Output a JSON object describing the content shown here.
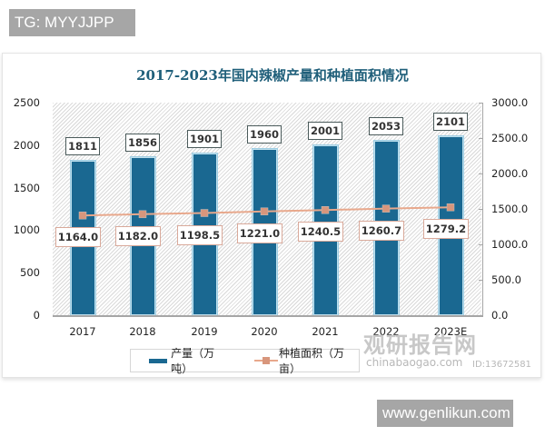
{
  "watermarks": {
    "top": "TG: MYYJJPP",
    "bottom": "www.genlikun.com",
    "brand": "观研报告网",
    "brand_sub": "chinabaogao.com",
    "brand_id": "ID:13672581"
  },
  "chart_data": {
    "type": "bar",
    "title": "2017-2023年国内辣椒产量和种植面积情况",
    "categories": [
      "2017",
      "2018",
      "2019",
      "2020",
      "2021",
      "2022",
      "2023E"
    ],
    "series": [
      {
        "name": "产量（万吨）",
        "type": "bar",
        "axis": "left",
        "color": "#1a6891",
        "values": [
          1811,
          1856,
          1901,
          1960,
          2001,
          2053,
          2101
        ],
        "labels": [
          "1811",
          "1856",
          "1901",
          "1960",
          "2001",
          "2053",
          "2101"
        ]
      },
      {
        "name": "种植面积（万亩）",
        "type": "line",
        "axis": "right",
        "color": "#e8a88c",
        "values": [
          1164.0,
          1182.0,
          1198.5,
          1221.0,
          1240.5,
          1260.7,
          1279.2
        ],
        "labels": [
          "1164.0",
          "1182.0",
          "1198.5",
          "1221.0",
          "1240.5",
          "1260.7",
          "1279.2"
        ]
      }
    ],
    "left_axis": {
      "ylim": [
        0,
        2500
      ],
      "ticks": [
        "2500",
        "2000",
        "1500",
        "1000",
        "500",
        "0"
      ]
    },
    "right_axis": {
      "ylim": [
        0,
        3000
      ],
      "ticks": [
        "3000.0",
        "2500.0",
        "2000.0",
        "1500.0",
        "1000.0",
        "500.0",
        "0.0"
      ]
    },
    "xlabel": "",
    "ylabel": "",
    "grid": false,
    "legend_position": "bottom",
    "legend": [
      "产量（万吨）",
      "种植面积（万亩）"
    ]
  }
}
